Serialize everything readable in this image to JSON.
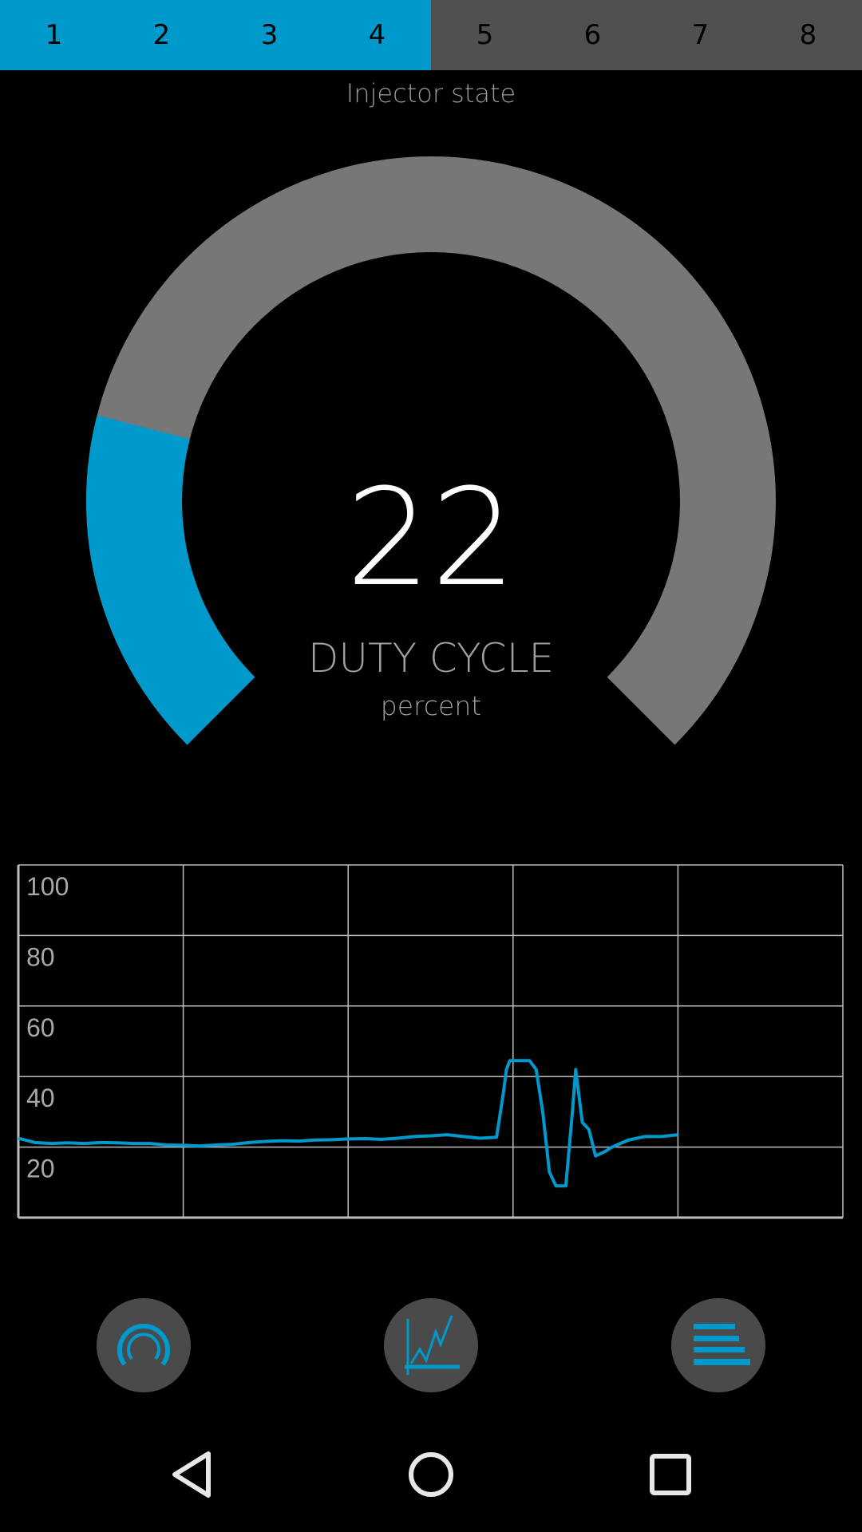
{
  "tabs": {
    "items": [
      "1",
      "2",
      "3",
      "4",
      "5",
      "6",
      "7",
      "8"
    ],
    "active_count": 4,
    "active_color": "#0099cc",
    "inactive_color": "#505050"
  },
  "gauge": {
    "title": "Injector state",
    "value": "22",
    "label": "DUTY CYCLE",
    "unit": "percent",
    "min": 0,
    "max": 100,
    "fill_percent": 22,
    "fill_color": "#0099cc",
    "track_color": "#777777"
  },
  "chart_data": {
    "type": "line",
    "ylim": [
      0,
      100
    ],
    "xlim": [
      0,
      250
    ],
    "y_ticks": [
      "20",
      "40",
      "60",
      "80",
      "100"
    ],
    "y_tick_values": [
      20,
      40,
      60,
      80,
      100
    ],
    "x_grid_values": [
      50,
      100,
      150,
      200,
      250
    ],
    "grid": true,
    "line_color": "#0099cc",
    "x": [
      0,
      5,
      10,
      15,
      20,
      25,
      30,
      35,
      40,
      45,
      50,
      55,
      60,
      65,
      70,
      75,
      80,
      85,
      90,
      95,
      100,
      105,
      110,
      115,
      120,
      125,
      130,
      135,
      140,
      145,
      147,
      148,
      149,
      152,
      155,
      157,
      159,
      161,
      163,
      166,
      168,
      169,
      171,
      173,
      175,
      178,
      180,
      185,
      190,
      195,
      200
    ],
    "y": [
      22.5,
      21.3,
      21,
      21.2,
      21,
      21.3,
      21.2,
      21,
      21,
      20.6,
      20.5,
      20.3,
      20.6,
      20.8,
      21.3,
      21.6,
      21.8,
      21.7,
      22,
      22.1,
      22.3,
      22.4,
      22.2,
      22.5,
      23,
      23.2,
      23.5,
      23,
      22.5,
      22.8,
      35,
      42,
      44.5,
      44.5,
      44.5,
      42,
      30,
      13,
      9,
      9,
      30,
      42,
      27,
      25,
      17.5,
      18.8,
      20,
      22,
      23,
      23,
      23.5
    ]
  },
  "bottom_buttons": [
    {
      "icon": "gauge-icon"
    },
    {
      "icon": "line-chart-icon"
    },
    {
      "icon": "bar-list-icon"
    }
  ],
  "nav": {
    "back": "back-icon",
    "home": "home-icon",
    "recents": "recents-icon"
  }
}
